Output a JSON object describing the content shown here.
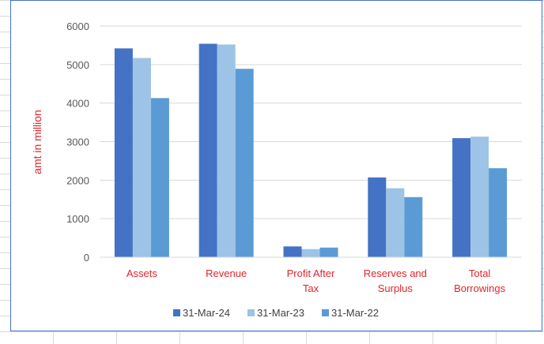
{
  "chart_data": {
    "type": "bar",
    "categories": [
      "Assets",
      "Revenue",
      "Profit After Tax",
      "Reserves and Surplus",
      "Total Borrowings"
    ],
    "series": [
      {
        "name": "31-Mar-24",
        "values": [
          5420,
          5540,
          280,
          2070,
          3090
        ],
        "color": "#4472c4"
      },
      {
        "name": "31-Mar-23",
        "values": [
          5170,
          5520,
          210,
          1790,
          3130
        ],
        "color": "#9dc3e6"
      },
      {
        "name": "31-Mar-22",
        "values": [
          4130,
          4890,
          250,
          1560,
          2310
        ],
        "color": "#5b9bd5"
      }
    ],
    "ylabel": "amt in million",
    "xlabel": "",
    "ylim": [
      0,
      6000
    ],
    "yticks": [
      0,
      1000,
      2000,
      3000,
      4000,
      5000,
      6000
    ],
    "grid": true,
    "legend_position": "bottom",
    "label_color": "#e0242b"
  }
}
